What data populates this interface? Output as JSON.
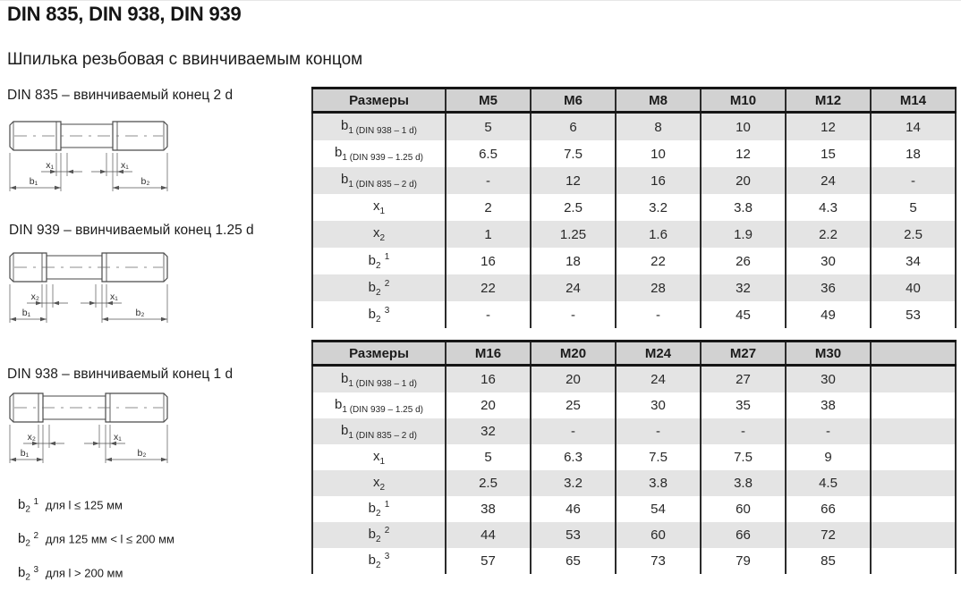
{
  "page": {
    "title": "DIN 835, DIN 938, DIN 939",
    "subtitle": "Шпилька резьбовая с ввинчиваемым концом"
  },
  "drawings": [
    {
      "caption": "DIN 835 – ввинчиваемый конец 2 d",
      "dim_x_left": "x₁",
      "dim_x_right": "x₁",
      "dim_b_left": "b₁",
      "dim_b_right": "b₂"
    },
    {
      "caption": "DIN 939 – ввинчиваемый конец 1.25 d",
      "dim_x_left": "x₂",
      "dim_x_right": "x₁",
      "dim_b_left": "b₁",
      "dim_b_right": "b₂"
    },
    {
      "caption": "DIN 938 – ввинчиваемый конец 1 d",
      "dim_x_left": "x₂",
      "dim_x_right": "x₁",
      "dim_b_left": "b₁",
      "dim_b_right": "b₂"
    }
  ],
  "footnotes": [
    {
      "base": "b",
      "sub": "2",
      "sup": "1",
      "text": "для l ≤ 125 мм"
    },
    {
      "base": "b",
      "sub": "2",
      "sup": "2",
      "text": "для 125 мм < l ≤ 200 мм"
    },
    {
      "base": "b",
      "sub": "2",
      "sup": "3",
      "text": "для l > 200 мм"
    }
  ],
  "tables": [
    {
      "header": [
        "Размеры",
        "M5",
        "M6",
        "M8",
        "M10",
        "M12",
        "M14"
      ],
      "rows": [
        {
          "label": {
            "base": "b",
            "sub": "1 (DIN 938 – 1 d)"
          },
          "values": [
            "5",
            "6",
            "8",
            "10",
            "12",
            "14"
          ],
          "shaded": true
        },
        {
          "label": {
            "base": "b",
            "sub": "1 (DIN 939 – 1.25 d)"
          },
          "values": [
            "6.5",
            "7.5",
            "10",
            "12",
            "15",
            "18"
          ],
          "shaded": false
        },
        {
          "label": {
            "base": "b",
            "sub": "1 (DIN 835 – 2 d)"
          },
          "values": [
            "-",
            "12",
            "16",
            "20",
            "24",
            "-"
          ],
          "shaded": true
        },
        {
          "label": {
            "base": "x",
            "sub": "1"
          },
          "values": [
            "2",
            "2.5",
            "3.2",
            "3.8",
            "4.3",
            "5"
          ],
          "shaded": false
        },
        {
          "label": {
            "base": "x",
            "sub": "2"
          },
          "values": [
            "1",
            "1.25",
            "1.6",
            "1.9",
            "2.2",
            "2.5"
          ],
          "shaded": true
        },
        {
          "label": {
            "base": "b",
            "sub": "2",
            "sup": "1"
          },
          "values": [
            "16",
            "18",
            "22",
            "26",
            "30",
            "34"
          ],
          "shaded": false
        },
        {
          "label": {
            "base": "b",
            "sub": "2",
            "sup": "2"
          },
          "values": [
            "22",
            "24",
            "28",
            "32",
            "36",
            "40"
          ],
          "shaded": true
        },
        {
          "label": {
            "base": "b",
            "sub": "2",
            "sup": "3"
          },
          "values": [
            "-",
            "-",
            "-",
            "45",
            "49",
            "53"
          ],
          "shaded": false
        }
      ]
    },
    {
      "header": [
        "Размеры",
        "M16",
        "M20",
        "M24",
        "M27",
        "M30",
        ""
      ],
      "rows": [
        {
          "label": {
            "base": "b",
            "sub": "1 (DIN 938 – 1 d)"
          },
          "values": [
            "16",
            "20",
            "24",
            "27",
            "30",
            ""
          ],
          "shaded": true
        },
        {
          "label": {
            "base": "b",
            "sub": "1 (DIN 939 – 1.25 d)"
          },
          "values": [
            "20",
            "25",
            "30",
            "35",
            "38",
            ""
          ],
          "shaded": false
        },
        {
          "label": {
            "base": "b",
            "sub": "1 (DIN 835 – 2 d)"
          },
          "values": [
            "32",
            "-",
            "-",
            "-",
            "-",
            ""
          ],
          "shaded": true
        },
        {
          "label": {
            "base": "x",
            "sub": "1"
          },
          "values": [
            "5",
            "6.3",
            "7.5",
            "7.5",
            "9",
            ""
          ],
          "shaded": false
        },
        {
          "label": {
            "base": "x",
            "sub": "2"
          },
          "values": [
            "2.5",
            "3.2",
            "3.8",
            "3.8",
            "4.5",
            ""
          ],
          "shaded": true
        },
        {
          "label": {
            "base": "b",
            "sub": "2",
            "sup": "1"
          },
          "values": [
            "38",
            "46",
            "54",
            "60",
            "66",
            ""
          ],
          "shaded": false
        },
        {
          "label": {
            "base": "b",
            "sub": "2",
            "sup": "2"
          },
          "values": [
            "44",
            "53",
            "60",
            "66",
            "72",
            ""
          ],
          "shaded": true
        },
        {
          "label": {
            "base": "b",
            "sub": "2",
            "sup": "3"
          },
          "values": [
            "57",
            "65",
            "73",
            "79",
            "85",
            ""
          ],
          "shaded": false
        }
      ]
    }
  ],
  "colors": {
    "header_bg": "#d2d2d2",
    "row_shaded": "#e4e4e4",
    "table_border": "#2c2c2c",
    "drawing_stroke": "#4a4a4a",
    "text": "#262626"
  }
}
